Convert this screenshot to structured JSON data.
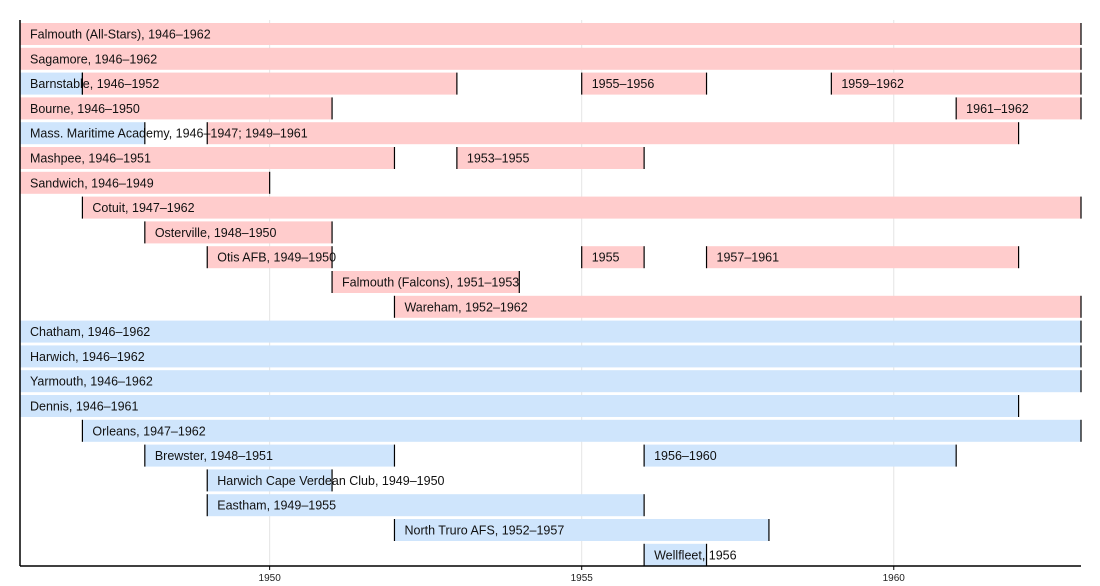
{
  "chart_data": {
    "type": "timeline",
    "title": "",
    "xlabel": "",
    "ylabel": "",
    "xlim": [
      1946,
      1963
    ],
    "x_ticks": [
      "1950",
      "1955",
      "1960"
    ],
    "grid": "vertical major",
    "colors": {
      "pink": "#ffcccc",
      "blue": "#cfe5fc"
    },
    "rows": [
      {
        "segments": [
          {
            "start": 1946,
            "end": 1962,
            "color": "pink",
            "label": "Falmouth (All-Stars), 1946–1962"
          }
        ]
      },
      {
        "segments": [
          {
            "start": 1946,
            "end": 1962,
            "color": "pink",
            "label": "Sagamore, 1946–1962"
          }
        ]
      },
      {
        "segments": [
          {
            "start": 1946,
            "end": 1946,
            "color": "blue",
            "label": ""
          },
          {
            "start": 1947,
            "end": 1952,
            "color": "pink",
            "label": "Barnstable, 1946–1952",
            "label_from": 1946
          },
          {
            "start": 1955,
            "end": 1956,
            "color": "pink",
            "label": "1955–1956"
          },
          {
            "start": 1959,
            "end": 1962,
            "color": "pink",
            "label": "1959–1962"
          }
        ]
      },
      {
        "segments": [
          {
            "start": 1946,
            "end": 1950,
            "color": "pink",
            "label": "Bourne, 1946–1950"
          },
          {
            "start": 1961,
            "end": 1962,
            "color": "pink",
            "label": "1961–1962"
          }
        ]
      },
      {
        "segments": [
          {
            "start": 1946,
            "end": 1947,
            "color": "blue",
            "label": "Mass. Maritime Academy, 1946–1947; 1949–1961"
          },
          {
            "start": 1949,
            "end": 1961,
            "color": "pink",
            "label": ""
          }
        ]
      },
      {
        "segments": [
          {
            "start": 1946,
            "end": 1951,
            "color": "pink",
            "label": "Mashpee, 1946–1951"
          },
          {
            "start": 1953,
            "end": 1955,
            "color": "pink",
            "label": "1953–1955"
          }
        ]
      },
      {
        "segments": [
          {
            "start": 1946,
            "end": 1949,
            "color": "pink",
            "label": "Sandwich, 1946–1949"
          }
        ]
      },
      {
        "segments": [
          {
            "start": 1947,
            "end": 1962,
            "color": "pink",
            "label": "Cotuit, 1947–1962"
          }
        ]
      },
      {
        "segments": [
          {
            "start": 1948,
            "end": 1950,
            "color": "pink",
            "label": "Osterville, 1948–1950"
          }
        ]
      },
      {
        "segments": [
          {
            "start": 1949,
            "end": 1950,
            "color": "pink",
            "label": "Otis AFB, 1949–1950"
          },
          {
            "start": 1955,
            "end": 1955,
            "color": "pink",
            "label": "1955"
          },
          {
            "start": 1957,
            "end": 1961,
            "color": "pink",
            "label": "1957–1961"
          }
        ]
      },
      {
        "segments": [
          {
            "start": 1951,
            "end": 1953,
            "color": "pink",
            "label": "Falmouth (Falcons), 1951–1953"
          }
        ]
      },
      {
        "segments": [
          {
            "start": 1952,
            "end": 1962,
            "color": "pink",
            "label": "Wareham, 1952–1962"
          }
        ]
      },
      {
        "segments": [
          {
            "start": 1946,
            "end": 1962,
            "color": "blue",
            "label": "Chatham, 1946–1962"
          }
        ]
      },
      {
        "segments": [
          {
            "start": 1946,
            "end": 1962,
            "color": "blue",
            "label": "Harwich, 1946–1962"
          }
        ]
      },
      {
        "segments": [
          {
            "start": 1946,
            "end": 1962,
            "color": "blue",
            "label": "Yarmouth, 1946–1962"
          }
        ]
      },
      {
        "segments": [
          {
            "start": 1946,
            "end": 1961,
            "color": "blue",
            "label": "Dennis, 1946–1961"
          }
        ]
      },
      {
        "segments": [
          {
            "start": 1947,
            "end": 1962,
            "color": "blue",
            "label": "Orleans, 1947–1962"
          }
        ]
      },
      {
        "segments": [
          {
            "start": 1948,
            "end": 1951,
            "color": "blue",
            "label": "Brewster, 1948–1951"
          },
          {
            "start": 1956,
            "end": 1960,
            "color": "blue",
            "label": "1956–1960"
          }
        ]
      },
      {
        "segments": [
          {
            "start": 1949,
            "end": 1950,
            "color": "blue",
            "label": "Harwich Cape Verdean Club, 1949–1950"
          }
        ]
      },
      {
        "segments": [
          {
            "start": 1949,
            "end": 1955,
            "color": "blue",
            "label": "Eastham, 1949–1955"
          }
        ]
      },
      {
        "segments": [
          {
            "start": 1952,
            "end": 1957,
            "color": "blue",
            "label": "North Truro AFS, 1952–1957"
          }
        ]
      },
      {
        "segments": [
          {
            "start": 1956,
            "end": 1956,
            "color": "blue",
            "label": "Wellfleet, 1956"
          }
        ]
      }
    ]
  }
}
